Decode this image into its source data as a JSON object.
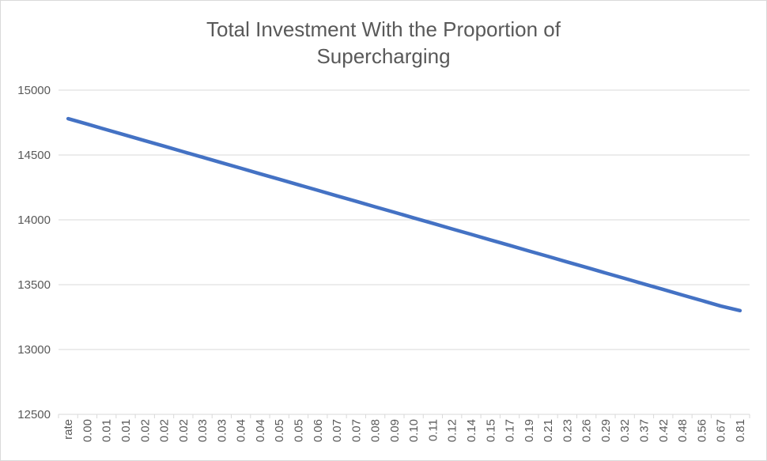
{
  "chart_data": {
    "type": "line",
    "title_lines": [
      "Total Investment With the Proportion of",
      "Supercharging"
    ],
    "xlabel": "",
    "ylabel": "",
    "ylim": [
      12500,
      15000
    ],
    "yticks": [
      "12500",
      "13000",
      "13500",
      "14000",
      "14500",
      "15000"
    ],
    "categories": [
      "rate",
      "0.00",
      "0.01",
      "0.01",
      "0.02",
      "0.02",
      "0.02",
      "0.03",
      "0.03",
      "0.04",
      "0.04",
      "0.05",
      "0.05",
      "0.06",
      "0.07",
      "0.07",
      "0.08",
      "0.09",
      "0.10",
      "0.11",
      "0.12",
      "0.14",
      "0.15",
      "0.17",
      "0.19",
      "0.21",
      "0.23",
      "0.26",
      "0.29",
      "0.32",
      "0.37",
      "0.42",
      "0.48",
      "0.56",
      "0.67",
      "0.81"
    ],
    "series": [
      {
        "color": "#4472c4",
        "values": [
          14780,
          14738,
          14695,
          14653,
          14610,
          14568,
          14525,
          14483,
          14440,
          14398,
          14355,
          14313,
          14270,
          14228,
          14185,
          14143,
          14100,
          14058,
          14015,
          13973,
          13930,
          13888,
          13845,
          13803,
          13760,
          13718,
          13675,
          13633,
          13590,
          13548,
          13505,
          13463,
          13420,
          13378,
          13335,
          13300
        ]
      }
    ],
    "grid": true,
    "legend": "none"
  }
}
